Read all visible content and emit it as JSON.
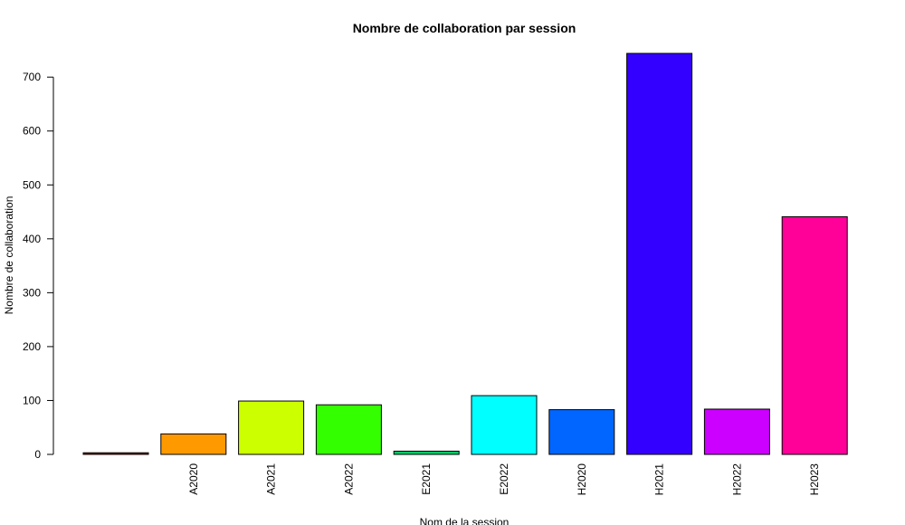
{
  "chart_data": {
    "type": "bar",
    "title": "Nombre de collaboration par session",
    "xlabel": "Nom de la session",
    "ylabel": "Nombre de collaboration",
    "categories": [
      "",
      "A2020",
      "A2021",
      "A2022",
      "E2021",
      "E2022",
      "H2020",
      "H2021",
      "H2022",
      "H2023"
    ],
    "values": [
      3,
      38,
      99,
      92,
      6,
      109,
      83,
      744,
      84,
      441
    ],
    "colors": [
      "#7a1a0a",
      "#ff9900",
      "#ccff00",
      "#33ff00",
      "#00cc66",
      "#00ffff",
      "#0066ff",
      "#3300ff",
      "#cc00ff",
      "#ff0099"
    ],
    "yticks": [
      0,
      100,
      200,
      300,
      400,
      500,
      600,
      700
    ],
    "ylim": [
      0,
      744
    ],
    "grid": false,
    "legend": "none"
  }
}
